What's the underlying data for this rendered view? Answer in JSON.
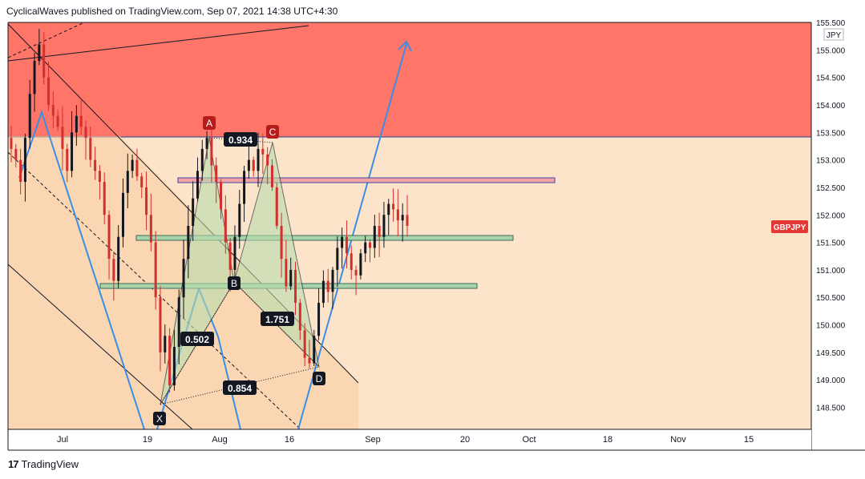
{
  "header": {
    "publisher_line": "CyclicalWaves published on TradingView.com, Sep 07, 2021 14:38 UTC+4:30"
  },
  "footer": {
    "brand": "TradingView",
    "logo_glyph": "17"
  },
  "chart_data": {
    "type": "candlestick",
    "symbol": "GBPJPY",
    "currency": "JPY",
    "y_ticks": [
      "155.500",
      "155.000",
      "154.500",
      "154.000",
      "153.500",
      "153.000",
      "152.500",
      "152.000",
      "151.500",
      "151.000",
      "150.500",
      "150.000",
      "149.500",
      "149.000",
      "148.500"
    ],
    "x_ticks": [
      "Jul",
      "19",
      "Aug",
      "16",
      "Sep",
      "20",
      "Oct",
      "18",
      "Nov",
      "15"
    ],
    "ylim": [
      148.1,
      155.5
    ],
    "last_price_label": "GBPJPY",
    "last_price": 151.8,
    "zones": [
      {
        "name": "supply-zone",
        "y_low": 153.5,
        "y_high": 155.5,
        "color": "#ff5c4d"
      },
      {
        "name": "resistance-band",
        "y_low": 152.55,
        "y_high": 152.65,
        "color": "#f4a3a3"
      },
      {
        "name": "support-band-1",
        "y_low": 151.55,
        "y_high": 151.62,
        "color": "#a9d3a8"
      },
      {
        "name": "support-band-2",
        "y_low": 150.67,
        "y_high": 150.74,
        "color": "#a9d3a8"
      }
    ],
    "pattern_points": [
      {
        "label": "X",
        "date": "2021-07-20",
        "price": 148.52
      },
      {
        "label": "A",
        "date": "2021-07-30",
        "price": 153.45
      },
      {
        "label": "B",
        "date": "2021-08-04",
        "price": 150.92
      },
      {
        "label": "C",
        "date": "2021-08-12",
        "price": 153.3
      },
      {
        "label": "D",
        "date": "2021-08-20",
        "price": 149.2
      }
    ],
    "ratios": [
      {
        "value": "0.934"
      },
      {
        "value": "0.502"
      },
      {
        "value": "1.751"
      },
      {
        "value": "0.854"
      }
    ],
    "candles_close": [
      153.2,
      153.0,
      152.6,
      153.4,
      154.2,
      154.8,
      155.1,
      154.5,
      154.0,
      153.8,
      153.6,
      153.2,
      152.8,
      153.5,
      153.8,
      153.6,
      153.4,
      153.0,
      152.8,
      152.6,
      152.0,
      151.2,
      150.8,
      151.6,
      152.4,
      152.8,
      153.0,
      152.7,
      152.5,
      152.0,
      151.5,
      150.5,
      149.5,
      149.8,
      148.9,
      149.6,
      150.5,
      151.2,
      151.8,
      152.3,
      152.8,
      153.2,
      153.4,
      152.9,
      152.6,
      152.1,
      151.5,
      151.0,
      151.6,
      152.2,
      152.8,
      153.0,
      152.8,
      153.2,
      153.1,
      152.9,
      152.5,
      151.8,
      151.2,
      150.7,
      151.0,
      150.4,
      149.9,
      149.4,
      149.3,
      149.8,
      150.4,
      150.8,
      150.6,
      151.0,
      151.4,
      151.6,
      151.3,
      151.0,
      150.9,
      151.3,
      151.5,
      151.4,
      151.8,
      151.6,
      152.0,
      152.2,
      152.1,
      151.9,
      152.0,
      151.8
    ]
  }
}
